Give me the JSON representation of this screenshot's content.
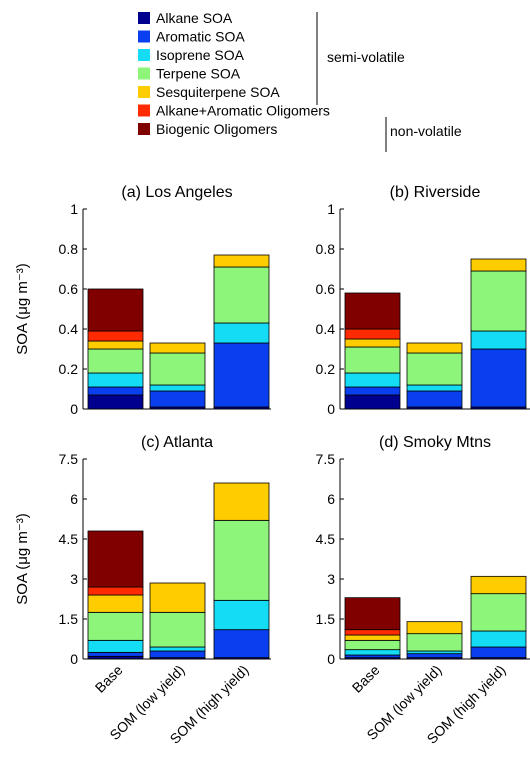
{
  "legend": {
    "items": [
      {
        "label": "Alkane SOA",
        "color": "#00008f"
      },
      {
        "label": "Aromatic SOA",
        "color": "#0a3ff0"
      },
      {
        "label": "Isoprene SOA",
        "color": "#14dcf5"
      },
      {
        "label": "Terpene SOA",
        "color": "#8cf57a"
      },
      {
        "label": "Sesquiterpene SOA",
        "color": "#ffcc00"
      },
      {
        "label": "Alkane+Aromatic Oligomers",
        "color": "#ff2a00"
      },
      {
        "label": "Biogenic Oligomers",
        "color": "#800000"
      }
    ],
    "groups": {
      "semi_volatile": "semi-volatile",
      "non_volatile": "non-volatile"
    }
  },
  "chart_data": [
    {
      "type": "bar",
      "stacked": true,
      "title": "(a) Los Angeles",
      "ylabel": "SOA (μg m⁻³)",
      "ylim": [
        0,
        1
      ],
      "yticks": [
        "0",
        "0.2",
        "0.4",
        "0.6",
        "0.8",
        "1"
      ],
      "categories": [
        "Base",
        "SOM (low yield)",
        "SOM (high yield)"
      ],
      "series": [
        {
          "name": "Alkane SOA",
          "values": [
            0.07,
            0.01,
            0.01
          ]
        },
        {
          "name": "Aromatic SOA",
          "values": [
            0.04,
            0.08,
            0.32
          ]
        },
        {
          "name": "Isoprene SOA",
          "values": [
            0.07,
            0.03,
            0.1
          ]
        },
        {
          "name": "Terpene SOA",
          "values": [
            0.12,
            0.16,
            0.28
          ]
        },
        {
          "name": "Sesquiterpene SOA",
          "values": [
            0.04,
            0.05,
            0.06
          ]
        },
        {
          "name": "Alkane+Aromatic Oligomers",
          "values": [
            0.05,
            0,
            0
          ]
        },
        {
          "name": "Biogenic Oligomers",
          "values": [
            0.21,
            0,
            0
          ]
        }
      ]
    },
    {
      "type": "bar",
      "stacked": true,
      "title": "(b) Riverside",
      "ylabel": "",
      "ylim": [
        0,
        1
      ],
      "yticks": [
        "0",
        "0.2",
        "0.4",
        "0.6",
        "0.8",
        "1"
      ],
      "categories": [
        "Base",
        "SOM (low yield)",
        "SOM (high yield)"
      ],
      "series": [
        {
          "name": "Alkane SOA",
          "values": [
            0.07,
            0.01,
            0.01
          ]
        },
        {
          "name": "Aromatic SOA",
          "values": [
            0.04,
            0.08,
            0.29
          ]
        },
        {
          "name": "Isoprene SOA",
          "values": [
            0.07,
            0.03,
            0.09
          ]
        },
        {
          "name": "Terpene SOA",
          "values": [
            0.13,
            0.16,
            0.3
          ]
        },
        {
          "name": "Sesquiterpene SOA",
          "values": [
            0.04,
            0.05,
            0.06
          ]
        },
        {
          "name": "Alkane+Aromatic Oligomers",
          "values": [
            0.05,
            0,
            0
          ]
        },
        {
          "name": "Biogenic Oligomers",
          "values": [
            0.18,
            0,
            0
          ]
        }
      ]
    },
    {
      "type": "bar",
      "stacked": true,
      "title": "(c) Atlanta",
      "ylabel": "SOA (μg m⁻³)",
      "ylim": [
        0,
        7.5
      ],
      "yticks": [
        "0",
        "1.5",
        "3",
        "4.5",
        "6",
        "7.5"
      ],
      "categories": [
        "Base",
        "SOM (low yield)",
        "SOM (high yield)"
      ],
      "series": [
        {
          "name": "Alkane SOA",
          "values": [
            0.1,
            0.05,
            0.05
          ]
        },
        {
          "name": "Aromatic SOA",
          "values": [
            0.15,
            0.25,
            1.05
          ]
        },
        {
          "name": "Isoprene SOA",
          "values": [
            0.45,
            0.15,
            1.1
          ]
        },
        {
          "name": "Terpene SOA",
          "values": [
            1.05,
            1.3,
            3.0
          ]
        },
        {
          "name": "Sesquiterpene SOA",
          "values": [
            0.65,
            1.1,
            1.4
          ]
        },
        {
          "name": "Alkane+Aromatic Oligomers",
          "values": [
            0.3,
            0,
            0
          ]
        },
        {
          "name": "Biogenic Oligomers",
          "values": [
            2.1,
            0,
            0
          ]
        }
      ]
    },
    {
      "type": "bar",
      "stacked": true,
      "title": "(d) Smoky Mtns",
      "ylabel": "",
      "ylim": [
        0,
        7.5
      ],
      "yticks": [
        "0",
        "1.5",
        "3",
        "4.5",
        "6",
        "7.5"
      ],
      "categories": [
        "Base",
        "SOM (low yield)",
        "SOM (high yield)"
      ],
      "series": [
        {
          "name": "Alkane SOA",
          "values": [
            0.05,
            0.05,
            0.05
          ]
        },
        {
          "name": "Aromatic SOA",
          "values": [
            0.1,
            0.15,
            0.4
          ]
        },
        {
          "name": "Isoprene SOA",
          "values": [
            0.2,
            0.1,
            0.6
          ]
        },
        {
          "name": "Terpene SOA",
          "values": [
            0.35,
            0.65,
            1.4
          ]
        },
        {
          "name": "Sesquiterpene SOA",
          "values": [
            0.2,
            0.45,
            0.65
          ]
        },
        {
          "name": "Alkane+Aromatic Oligomers",
          "values": [
            0.2,
            0,
            0
          ]
        },
        {
          "name": "Biogenic Oligomers",
          "values": [
            1.2,
            0,
            0
          ]
        }
      ]
    }
  ]
}
